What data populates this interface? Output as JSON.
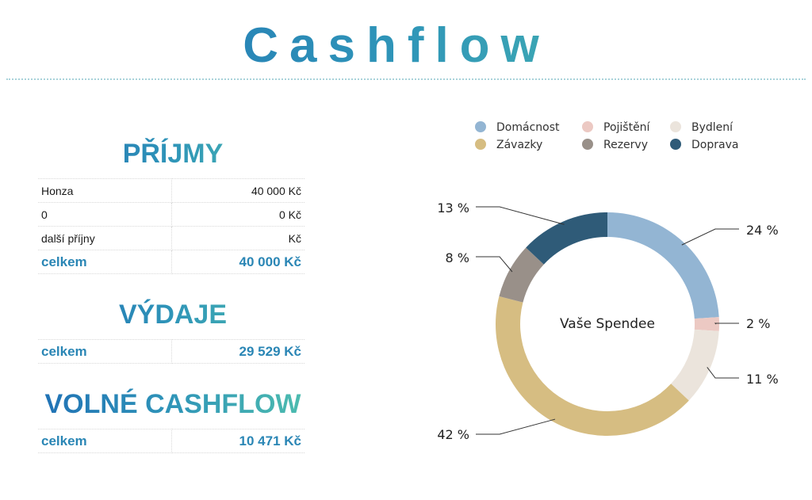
{
  "header": {
    "title": "Cashflow"
  },
  "income": {
    "heading": "PŘÍJMY",
    "rows": [
      {
        "label": "Honza",
        "value": "40 000 Kč"
      },
      {
        "label": "0",
        "value": "0 Kč"
      },
      {
        "label": "další příjny",
        "value": "Kč"
      }
    ],
    "total": {
      "label": "celkem",
      "value": "40 000 Kč"
    }
  },
  "expenses": {
    "heading": "VÝDAJE",
    "total": {
      "label": "celkem",
      "value": "29 529 Kč"
    }
  },
  "free_cashflow": {
    "heading": "VOLNÉ CASHFLOW",
    "total": {
      "label": "celkem",
      "value": "10 471 Kč"
    }
  },
  "chart_data": {
    "type": "pie",
    "variant": "donut",
    "center_label": "Vaše Spendee",
    "legend_position": "top",
    "slices": [
      {
        "name": "Domácnost",
        "value": 24,
        "label": "24 %",
        "color": "#93b5d3"
      },
      {
        "name": "Pojištění",
        "value": 2,
        "label": "2 %",
        "color": "#ecc9c3"
      },
      {
        "name": "Bydlení",
        "value": 11,
        "label": "11 %",
        "color": "#ebe4dc"
      },
      {
        "name": "Závazky",
        "value": 42,
        "label": "42 %",
        "color": "#d6bd82"
      },
      {
        "name": "Rezervy",
        "value": 8,
        "label": "8 %",
        "color": "#999089"
      },
      {
        "name": "Doprava",
        "value": 13,
        "label": "13 %",
        "color": "#2f5b78"
      }
    ],
    "legend_order": [
      "Domácnost",
      "Pojištění",
      "Bydlení",
      "Závazky",
      "Rezervy",
      "Doprava"
    ]
  }
}
